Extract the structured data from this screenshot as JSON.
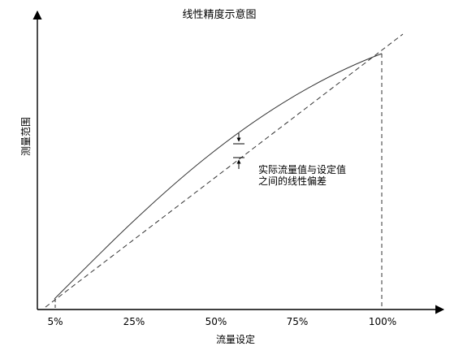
{
  "diagram": {
    "title": "线性精度示意图",
    "y_axis_label": "测量范围",
    "x_axis_label": "流量设定",
    "x_ticks": [
      "5%",
      "25%",
      "50%",
      "75%",
      "100%"
    ],
    "annotation_lines": [
      "实际流量值与设定值",
      "之间的线性偏差"
    ]
  },
  "colors": {
    "axis": "#000000",
    "curve": "#333333",
    "ideal_line": "#333333",
    "background": "#ffffff"
  }
}
